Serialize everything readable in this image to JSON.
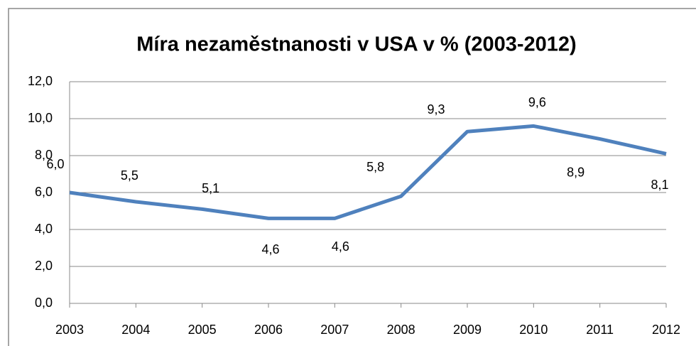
{
  "chart_data": {
    "type": "line",
    "title": "Míra nezaměstnanosti v USA v % (2003-2012)",
    "categories": [
      "2003",
      "2004",
      "2005",
      "2006",
      "2007",
      "2008",
      "2009",
      "2010",
      "2011",
      "2012"
    ],
    "series": [
      {
        "color": "#4f81bd",
        "values": [
          6.0,
          5.5,
          5.1,
          4.6,
          4.6,
          5.8,
          9.3,
          9.6,
          8.9,
          8.1
        ],
        "value_labels": [
          "6,0",
          "5,5",
          "5,1",
          "4,6",
          "4,6",
          "5,8",
          "9,3",
          "9,6",
          "8,9",
          "8,1"
        ]
      }
    ],
    "ylim": [
      0,
      12
    ],
    "yticks": [
      {
        "value": 0,
        "label": "0,0"
      },
      {
        "value": 2,
        "label": "2,0"
      },
      {
        "value": 4,
        "label": "4,0"
      },
      {
        "value": 6,
        "label": "6,0"
      },
      {
        "value": 8,
        "label": "8,0"
      },
      {
        "value": 10,
        "label": "10,0"
      },
      {
        "value": 12,
        "label": "12,0"
      }
    ],
    "grid": true
  }
}
